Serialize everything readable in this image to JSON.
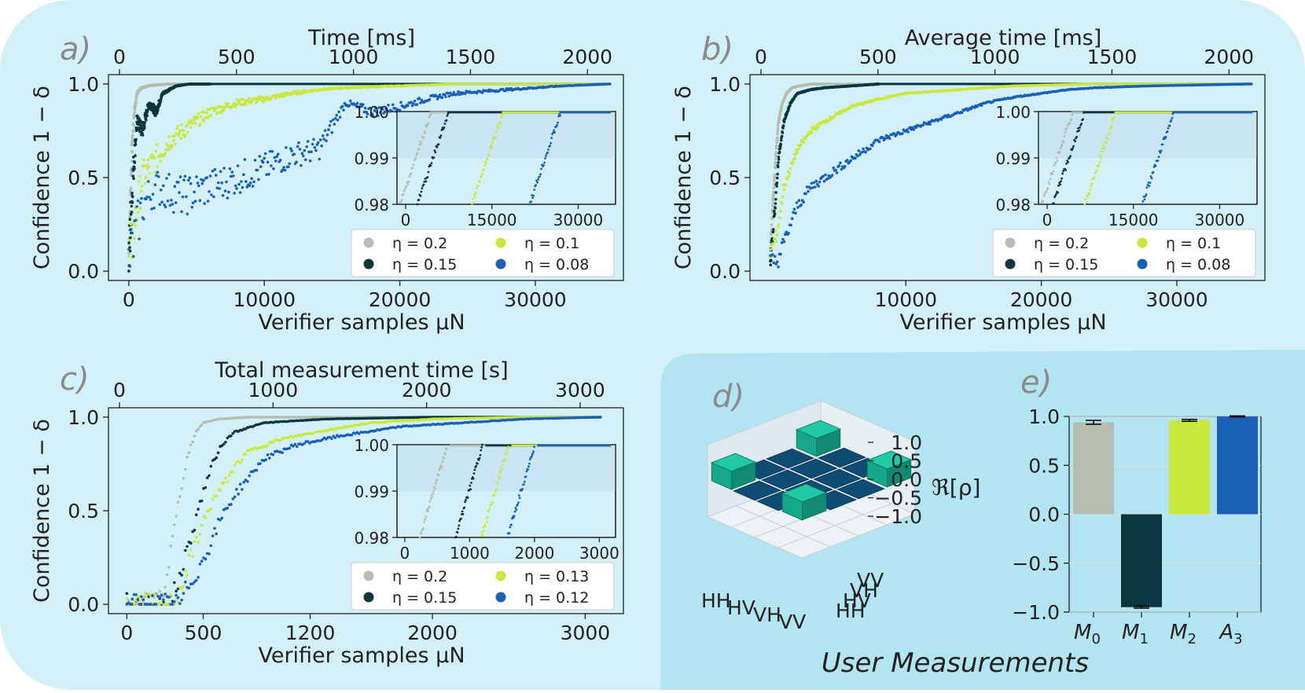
{
  "panels": [
    {
      "id": "a",
      "letter": "a)",
      "top_label": "Time [ms]",
      "top_ticks": [
        "0",
        "500",
        "1000",
        "1500",
        "2000"
      ],
      "ylabel": "Confidence 1 − δ",
      "xlabel": "Verifier samples μN",
      "bottom_ticks": [
        "0",
        "10000",
        "20000",
        "30000"
      ],
      "y_ticks": [
        "0.0",
        "0.5",
        "1.0"
      ],
      "inset": {
        "y_ticks": [
          "1.00",
          "0.99",
          "0.98"
        ],
        "x_ticks": [
          "0",
          "15000",
          "30000"
        ]
      },
      "legend": [
        {
          "label": "η = 0.2",
          "color": "#b5bdb0"
        },
        {
          "label": "η = 0.1",
          "color": "#c8e83c"
        },
        {
          "label": "η = 0.15",
          "color": "#0b3640"
        },
        {
          "label": "η = 0.08",
          "color": "#1a5fb8"
        }
      ]
    },
    {
      "id": "b",
      "letter": "b)",
      "top_label": "Average time [ms]",
      "top_ticks": [
        "0",
        "500",
        "1000",
        "1500",
        "2000"
      ],
      "ylabel": "Confidence 1 − δ",
      "xlabel": "Verifier samples μN",
      "bottom_ticks": [
        "10000",
        "20000",
        "30000"
      ],
      "y_ticks": [
        "0.0",
        "0.5",
        "1.0"
      ],
      "inset": {
        "y_ticks": [
          "1.00",
          "0.99",
          "0.98"
        ],
        "x_ticks": [
          "0",
          "15000",
          "30000"
        ]
      },
      "legend": [
        {
          "label": "η = 0.2",
          "color": "#b5bdb0"
        },
        {
          "label": "η = 0.1",
          "color": "#c8e83c"
        },
        {
          "label": "η = 0.15",
          "color": "#0b3640"
        },
        {
          "label": "η = 0.08",
          "color": "#1a5fb8"
        }
      ]
    },
    {
      "id": "c",
      "letter": "c)",
      "top_label": "Total measurement time [s]",
      "top_ticks": [
        "0",
        "1000",
        "2000",
        "3000"
      ],
      "ylabel": "Confidence 1 − δ",
      "xlabel": "Verifier samples μN",
      "bottom_ticks": [
        "0",
        "500",
        "1200",
        "2000",
        "3000"
      ],
      "y_ticks": [
        "0.0",
        "0.5",
        "1.0"
      ],
      "inset": {
        "y_ticks": [
          "1.00",
          "0.99",
          "0.98"
        ],
        "x_ticks": [
          "0",
          "1000",
          "2000",
          "3000"
        ]
      },
      "legend": [
        {
          "label": "η = 0.2",
          "color": "#b5bdb0"
        },
        {
          "label": "η = 0.13",
          "color": "#c8e83c"
        },
        {
          "label": "η = 0.15",
          "color": "#0b3640"
        },
        {
          "label": "η = 0.12",
          "color": "#1a5fb8"
        }
      ]
    }
  ],
  "panel_d": {
    "letter": "d)",
    "zlabel": "ℜ[ρ]",
    "z_ticks": [
      "1.0",
      "0.5",
      "0.0",
      "−0.5",
      "−1.0"
    ],
    "x_ticks": [
      "HH",
      "HV",
      "VH",
      "VV"
    ],
    "y_ticks": [
      "HH",
      "HV",
      "VH",
      "VV"
    ]
  },
  "panel_e": {
    "letter": "e)",
    "y_ticks": [
      "1.0",
      "0.5",
      "0.0",
      "−0.5",
      "−1.0"
    ]
  },
  "user_measurements_label": "User Measurements",
  "colors": {
    "bg_light": "#d3f0f8",
    "bg_dark": "#b3e4f2",
    "gray": "#b5bdb0",
    "dark": "#0b3640",
    "lime": "#c8e83c",
    "blue": "#1a5fb8",
    "teal": "#1aa88c",
    "inset_band": "#c9e4f3"
  },
  "chart_data": [
    {
      "type": "scatter",
      "panel": "a",
      "x_unit": "Verifier samples μN",
      "xlim": [
        -1500,
        36500
      ],
      "ylim": [
        -0.05,
        1.05
      ],
      "series": [
        {
          "name": "η = 0.2",
          "x": [
            0,
            200,
            400,
            600,
            800,
            1000,
            1400,
            2000,
            3000,
            4000
          ],
          "y": [
            0.1,
            0.6,
            0.85,
            0.95,
            0.97,
            0.98,
            0.99,
            0.995,
            1.0,
            1.0
          ]
        },
        {
          "name": "η = 0.15",
          "x": [
            0,
            300,
            600,
            1000,
            1500,
            2000,
            2500,
            3000,
            3500,
            4500,
            6000
          ],
          "y": [
            0.05,
            0.5,
            0.8,
            0.75,
            0.9,
            0.85,
            0.95,
            0.97,
            0.99,
            1.0,
            1.0
          ]
        },
        {
          "name": "η = 0.1",
          "x": [
            0,
            1000,
            2000,
            3000,
            4000,
            6000,
            8000,
            10000,
            12000,
            14000,
            16000,
            20000,
            24000
          ],
          "y": [
            0.05,
            0.5,
            0.6,
            0.7,
            0.75,
            0.85,
            0.9,
            0.92,
            0.95,
            0.97,
            0.98,
            0.99,
            1.0
          ]
        },
        {
          "name": "η = 0.08",
          "x": [
            0,
            1000,
            2000,
            4000,
            6000,
            8000,
            10000,
            12000,
            14000,
            16000,
            18000,
            20000,
            22000,
            24000,
            26000,
            28000,
            30000,
            32000,
            35500
          ],
          "y": [
            0.05,
            0.35,
            0.45,
            0.4,
            0.45,
            0.5,
            0.55,
            0.62,
            0.65,
            0.9,
            0.85,
            0.88,
            0.92,
            0.95,
            0.96,
            0.97,
            0.98,
            0.99,
            1.0
          ]
        }
      ]
    },
    {
      "type": "scatter",
      "panel": "b",
      "x_unit": "Verifier samples μN",
      "xlim": [
        -1500,
        36500
      ],
      "ylim": [
        -0.05,
        1.05
      ],
      "series": [
        {
          "name": "η = 0.2",
          "x": [
            0,
            300,
            600,
            900,
            1200,
            1600,
            2200,
            3000,
            4000
          ],
          "y": [
            0.1,
            0.5,
            0.8,
            0.9,
            0.95,
            0.98,
            0.99,
            1.0,
            1.0
          ]
        },
        {
          "name": "η = 0.15",
          "x": [
            0,
            300,
            600,
            1000,
            1500,
            2000,
            3000,
            4000,
            6000,
            8000
          ],
          "y": [
            0.05,
            0.3,
            0.6,
            0.8,
            0.9,
            0.95,
            0.97,
            0.98,
            0.99,
            1.0
          ]
        },
        {
          "name": "η = 0.1",
          "x": [
            0,
            500,
            1000,
            2000,
            3000,
            4000,
            6000,
            8000,
            10000,
            14000,
            18000,
            24000
          ],
          "y": [
            0.1,
            0.2,
            0.45,
            0.65,
            0.75,
            0.8,
            0.88,
            0.92,
            0.95,
            0.97,
            0.99,
            1.0
          ]
        },
        {
          "name": "η = 0.08",
          "x": [
            0,
            500,
            1000,
            2000,
            3000,
            4000,
            6000,
            8000,
            10000,
            12000,
            14000,
            16000,
            18000,
            20000,
            22000,
            24000,
            28000,
            35500
          ],
          "y": [
            0.05,
            0.05,
            0.15,
            0.35,
            0.45,
            0.5,
            0.6,
            0.7,
            0.75,
            0.8,
            0.85,
            0.9,
            0.93,
            0.95,
            0.97,
            0.98,
            0.99,
            1.0
          ]
        }
      ]
    },
    {
      "type": "scatter",
      "panel": "c",
      "x_unit": "Verifier samples μN",
      "xlim": [
        -120,
        3250
      ],
      "ylim": [
        -0.05,
        1.05
      ],
      "series": [
        {
          "name": "η = 0.2",
          "x": [
            0,
            200,
            250,
            300,
            350,
            400,
            450,
            500,
            600,
            800,
            1200,
            2000,
            3100
          ],
          "y": [
            0.0,
            0.0,
            0.1,
            0.35,
            0.6,
            0.8,
            0.92,
            0.97,
            0.99,
            1.0,
            1.0,
            1.0,
            1.0
          ]
        },
        {
          "name": "η = 0.15",
          "x": [
            0,
            280,
            330,
            400,
            450,
            500,
            560,
            620,
            700,
            900,
            1300,
            2000,
            3100
          ],
          "y": [
            0.0,
            0.0,
            0.1,
            0.3,
            0.45,
            0.6,
            0.75,
            0.85,
            0.92,
            0.97,
            0.99,
            1.0,
            1.0
          ]
        },
        {
          "name": "η = 0.13",
          "x": [
            0,
            300,
            360,
            420,
            480,
            560,
            640,
            720,
            800,
            1000,
            1300,
            1600,
            2000,
            2600,
            3100
          ],
          "y": [
            0.0,
            0.0,
            0.1,
            0.25,
            0.4,
            0.55,
            0.65,
            0.75,
            0.82,
            0.88,
            0.93,
            0.97,
            0.99,
            1.0,
            1.0
          ]
        },
        {
          "name": "η = 0.12",
          "x": [
            0,
            350,
            400,
            480,
            560,
            640,
            720,
            820,
            900,
            1100,
            1400,
            1800,
            2200,
            2600,
            3100
          ],
          "y": [
            0.0,
            0.0,
            0.1,
            0.2,
            0.35,
            0.5,
            0.6,
            0.7,
            0.78,
            0.85,
            0.9,
            0.95,
            0.97,
            0.99,
            1.0
          ]
        }
      ]
    },
    {
      "type": "bar",
      "panel": "e",
      "categories": [
        "M_0",
        "M_1",
        "M_2",
        "A_3"
      ],
      "values": [
        0.94,
        -0.95,
        0.96,
        1.0
      ],
      "errors": [
        0.02,
        0.01,
        0.01,
        0.005
      ],
      "colors": [
        "#b5bdb0",
        "#0b3640",
        "#c8e83c",
        "#1a5fb8"
      ],
      "ylim": [
        -1.0,
        1.0
      ]
    },
    {
      "type": "bar3d",
      "panel": "d",
      "rows": [
        "HH",
        "HV",
        "VH",
        "VV"
      ],
      "cols": [
        "HH",
        "HV",
        "VH",
        "VV"
      ],
      "matrix": [
        [
          0.5,
          0.0,
          0.0,
          0.5
        ],
        [
          0.0,
          0.0,
          0.0,
          0.0
        ],
        [
          0.0,
          0.0,
          0.0,
          0.0
        ],
        [
          0.5,
          0.0,
          0.0,
          0.5
        ]
      ],
      "zlim": [
        -1.0,
        1.0
      ]
    }
  ]
}
